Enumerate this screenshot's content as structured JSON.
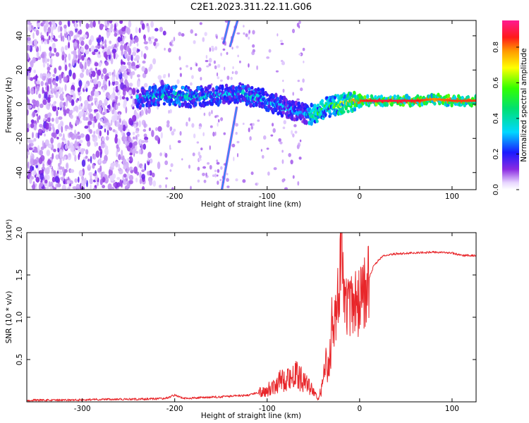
{
  "title": "C2E1.2023.311.22.11.G06",
  "chart_data": [
    {
      "type": "heatmap",
      "xlabel": "Height of straight line (km)",
      "ylabel": "Frequency (Hz)",
      "xlim": [
        -360,
        126
      ],
      "ylim": [
        -50,
        49
      ],
      "xticks": [
        -300,
        -200,
        -100,
        0,
        100
      ],
      "xtick_labels": [
        "-300",
        "-200",
        "-100",
        "0",
        "100"
      ],
      "yticks": [
        -40,
        -20,
        0,
        20,
        40
      ],
      "ytick_labels": [
        "-40",
        "-20",
        "0",
        "20",
        "40"
      ],
      "colorbar": {
        "label": "Normalized spectral amplitude",
        "range": [
          0.0,
          0.95
        ],
        "ticks": [
          0.0,
          0.2,
          0.4,
          0.6,
          0.8
        ],
        "tick_labels": [
          "0.0",
          "0.2",
          "0.4",
          "0.6",
          "0.8"
        ],
        "colormap": "rainbow"
      },
      "ridge": {
        "x": [
          -240,
          -220,
          -200,
          -180,
          -160,
          -140,
          -130,
          -120,
          -110,
          -100,
          -90,
          -80,
          -70,
          -60,
          -50,
          -40,
          -30,
          -20,
          -10,
          0,
          20,
          40,
          60,
          80,
          100,
          126
        ],
        "y": [
          3,
          5,
          5,
          4,
          5,
          6,
          7,
          5,
          4,
          2,
          0,
          -2,
          -4,
          -6,
          -6,
          -3,
          -1,
          0,
          1,
          2,
          2,
          2,
          2,
          3,
          2,
          2
        ],
        "amplitude": [
          0.35,
          0.4,
          0.45,
          0.4,
          0.38,
          0.35,
          0.4,
          0.4,
          0.38,
          0.35,
          0.35,
          0.35,
          0.32,
          0.3,
          0.6,
          0.55,
          0.6,
          0.7,
          0.8,
          0.85,
          0.9,
          0.9,
          0.88,
          0.8,
          0.85,
          0.85
        ]
      },
      "streaks": [
        {
          "x": [
            -147,
            -141
          ],
          "y": [
            36,
            49
          ]
        },
        {
          "x": [
            -140,
            -132
          ],
          "y": [
            34,
            49
          ]
        },
        {
          "x": [
            -149,
            -133
          ],
          "y": [
            -50,
            -2
          ]
        }
      ]
    },
    {
      "type": "line",
      "xlabel": "Height of straight line (km)",
      "ylabel": "SNR (10 * v/v)",
      "scale_label": "(x10⁴)",
      "xlim": [
        -360,
        126
      ],
      "ylim": [
        0,
        2.0
      ],
      "xticks": [
        -300,
        -200,
        -100,
        0,
        100
      ],
      "xtick_labels": [
        "-300",
        "-200",
        "-100",
        "0",
        "100"
      ],
      "yticks": [
        0.5,
        1.0,
        1.5,
        2.0
      ],
      "ytick_labels": [
        "0.5",
        "1.0",
        "1.5",
        "2.0"
      ],
      "series": [
        {
          "color": "#e8262a",
          "x": [
            -360,
            -320,
            -280,
            -240,
            -210,
            -200,
            -190,
            -150,
            -120,
            -100,
            -90,
            -80,
            -70,
            -60,
            -50,
            -45,
            -40,
            -35,
            -30,
            -25,
            -22,
            -20,
            -15,
            -10,
            -5,
            0,
            5,
            10,
            15,
            20,
            25,
            30,
            40,
            60,
            80,
            100,
            110,
            126
          ],
          "y": [
            0.02,
            0.02,
            0.03,
            0.03,
            0.04,
            0.08,
            0.04,
            0.06,
            0.08,
            0.14,
            0.22,
            0.28,
            0.32,
            0.25,
            0.12,
            0.03,
            0.2,
            0.5,
            0.85,
            1.05,
            1.5,
            1.95,
            1.15,
            1.1,
            1.15,
            1.2,
            1.3,
            1.45,
            1.6,
            1.67,
            1.72,
            1.74,
            1.75,
            1.76,
            1.77,
            1.76,
            1.73,
            1.73
          ]
        }
      ]
    }
  ]
}
